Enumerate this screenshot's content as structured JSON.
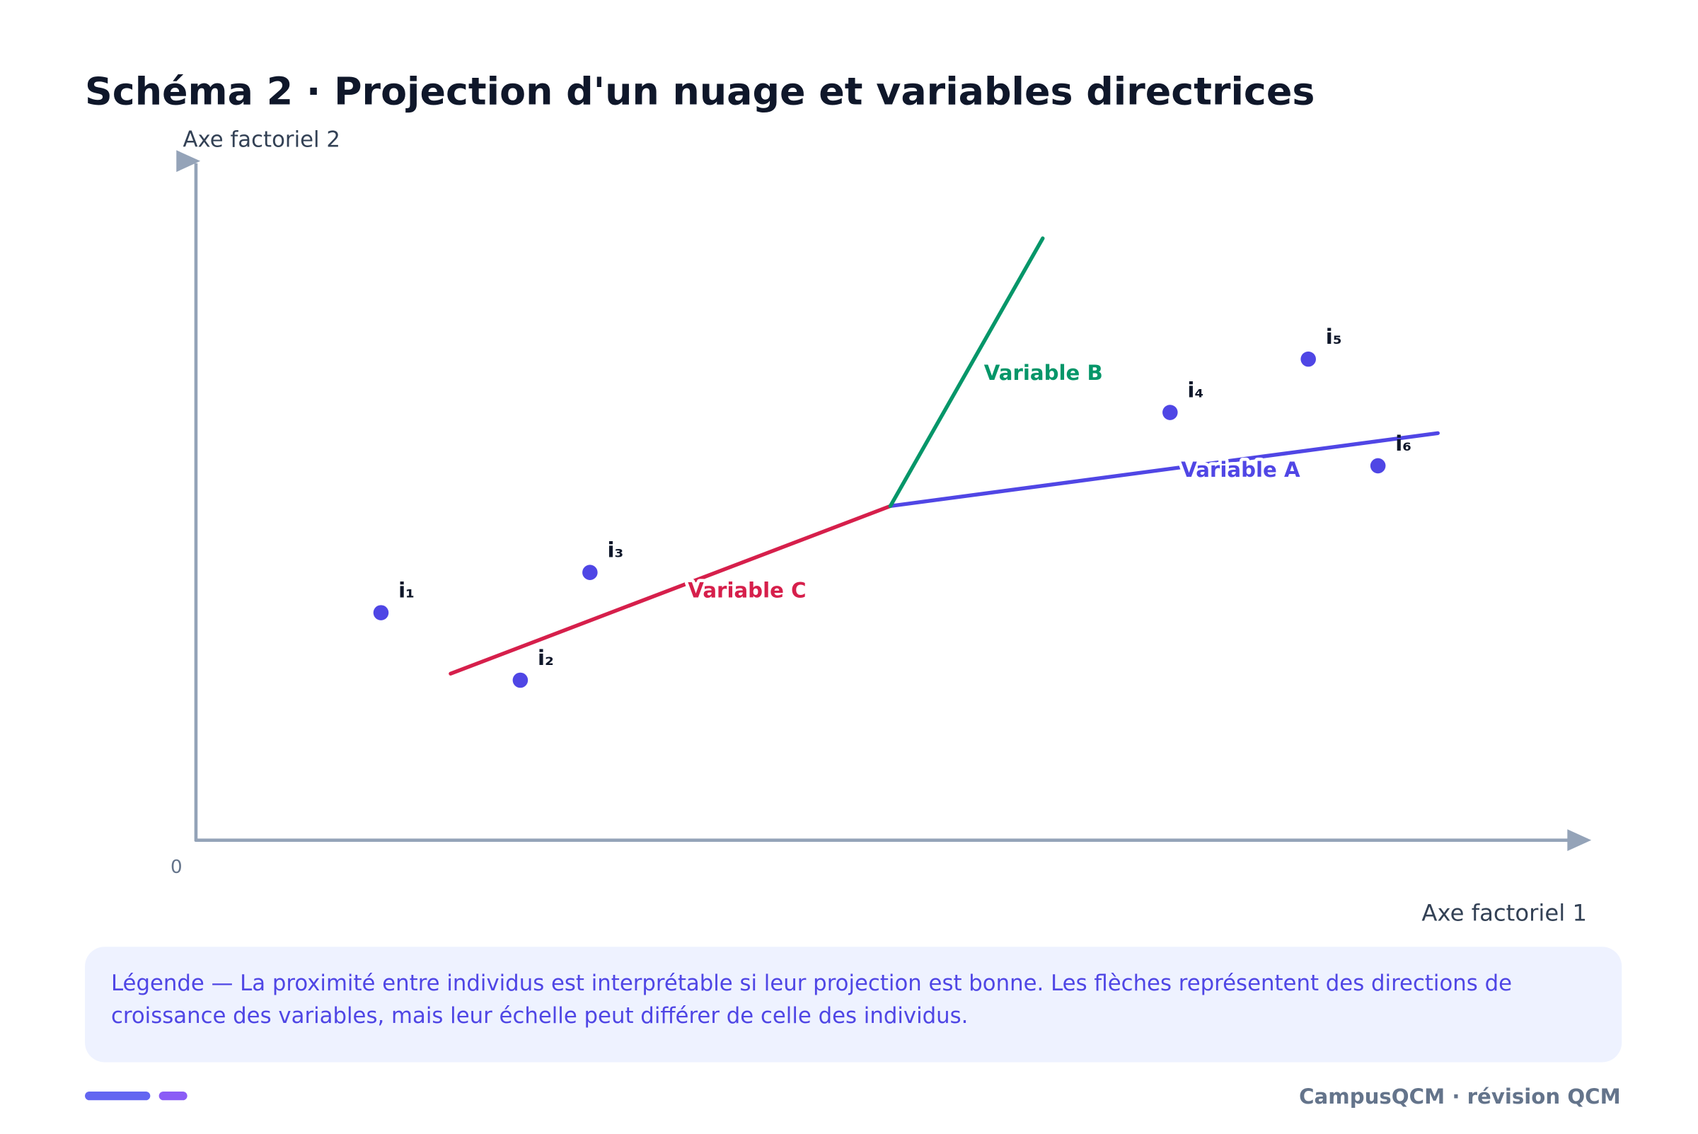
{
  "header": {
    "title": "Schéma 2 · Projection d'un nuage et variables directrices"
  },
  "axes": {
    "y_label": "Axe factoriel 2",
    "x_label": "Axe factoriel 1",
    "origin": "0"
  },
  "variables": [
    {
      "label": "Variable A"
    },
    {
      "label": "Variable B"
    },
    {
      "label": "Variable C"
    }
  ],
  "individuals": [
    {
      "label": "i₁"
    },
    {
      "label": "i₂"
    },
    {
      "label": "i₃"
    },
    {
      "label": "i₄"
    },
    {
      "label": "i₅"
    },
    {
      "label": "i₆"
    }
  ],
  "legend": {
    "lines": [
      "Légende — La proximité entre individus est interprétable si leur projection est bonne. Les flèches représentent des directions de",
      "croissance des variables, mais leur échelle peut différer de celle des individus."
    ]
  },
  "footer": {
    "brand": "CampusQCM · révision QCM"
  }
}
